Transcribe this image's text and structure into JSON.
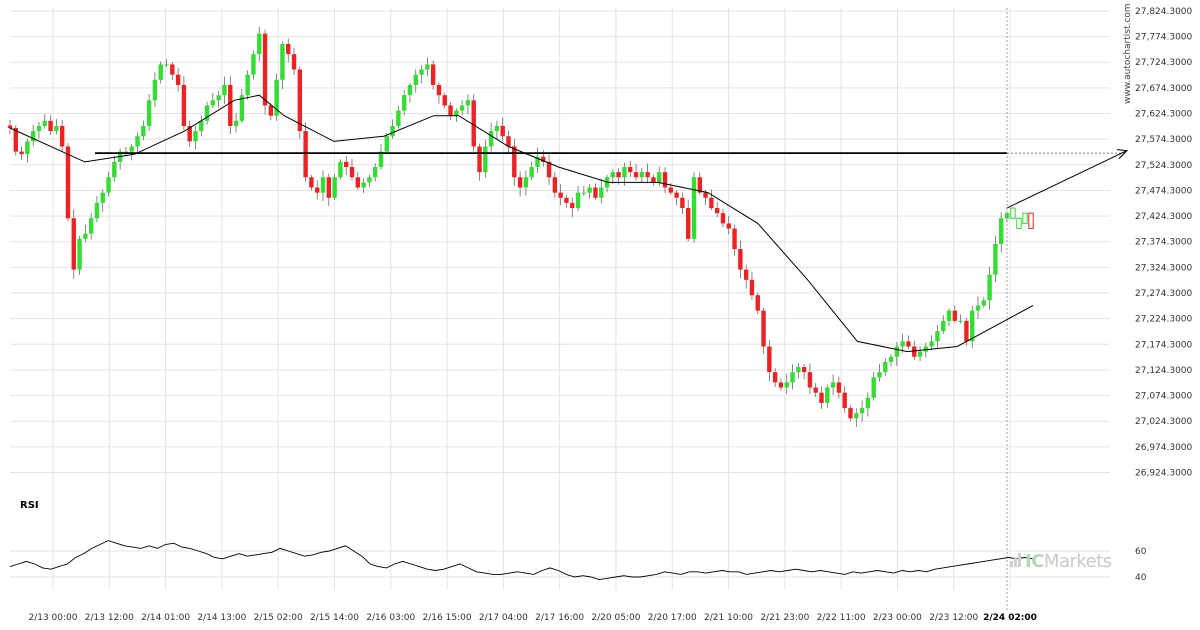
{
  "chart_data": {
    "type": "candlestick",
    "watermark": "www.autochartist.com",
    "brand": {
      "prefix": "IC",
      "suffix": "Markets"
    },
    "colors": {
      "up": "#33dd33",
      "down": "#ee2222",
      "line": "#000000",
      "grid": "#e3e3e3"
    },
    "price_axis": {
      "ylim": [
        26900,
        27830
      ],
      "ticks": [
        27824.3,
        27774.3,
        27724.3,
        27674.3,
        27624.3,
        27574.3,
        27524.3,
        27474.3,
        27424.3,
        27374.3,
        27324.3,
        27274.3,
        27224.3,
        27174.3,
        27124.3,
        27074.3,
        27024.3,
        26974.3,
        26924.3
      ],
      "tick_labels": [
        "27,824.3000",
        "27,774.3000",
        "27,724.3000",
        "27,674.3000",
        "27,624.3000",
        "27,574.3000",
        "27,524.3000",
        "27,474.3000",
        "27,424.3000",
        "27,374.3000",
        "27,324.3000",
        "27,274.3000",
        "27,224.3000",
        "27,174.3000",
        "27,124.3000",
        "27,074.3000",
        "27,024.3000",
        "26,974.3000",
        "26,924.3000"
      ]
    },
    "x_labels": [
      "2/13 00:00",
      "2/13 12:00",
      "2/14 01:00",
      "2/14 13:00",
      "2/15 02:00",
      "2/15 14:00",
      "2/16 03:00",
      "2/16 15:00",
      "2/17 04:00",
      "2/17 16:00",
      "2/20 05:00",
      "2/20 17:00",
      "2/21 10:00",
      "2/21 23:00",
      "2/22 11:00",
      "2/23 00:00",
      "2/23 12:00",
      "2/24 02:00"
    ],
    "x_label_bold_index": 17,
    "candle_count": 200,
    "closes": [
      27596,
      27550,
      27545,
      27570,
      27590,
      27600,
      27610,
      27590,
      27600,
      27560,
      27420,
      27320,
      27380,
      27390,
      27420,
      27450,
      27470,
      27500,
      27530,
      27550,
      27550,
      27560,
      27580,
      27600,
      27650,
      27690,
      27720,
      27720,
      27700,
      27680,
      27600,
      27570,
      27590,
      27610,
      27640,
      27650,
      27660,
      27680,
      27600,
      27610,
      27660,
      27700,
      27740,
      27780,
      27640,
      27620,
      27690,
      27760,
      27740,
      27710,
      27590,
      27500,
      27480,
      27470,
      27500,
      27460,
      27500,
      27530,
      27520,
      27500,
      27480,
      27490,
      27500,
      27520,
      27550,
      27580,
      27600,
      27630,
      27660,
      27680,
      27700,
      27710,
      27720,
      27680,
      27660,
      27640,
      27620,
      27630,
      27640,
      27650,
      27560,
      27510,
      27560,
      27590,
      27600,
      27580,
      27560,
      27500,
      27480,
      27500,
      27520,
      27540,
      27530,
      27500,
      27470,
      27460,
      27450,
      27440,
      27470,
      27470,
      27480,
      27460,
      27480,
      27500,
      27510,
      27500,
      27520,
      27510,
      27500,
      27510,
      27500,
      27490,
      27510,
      27480,
      27470,
      27460,
      27440,
      27380,
      27500,
      27470,
      27460,
      27440,
      27430,
      27410,
      27400,
      27360,
      27320,
      27300,
      27270,
      27240,
      27170,
      27120,
      27100,
      27090,
      27100,
      27120,
      27130,
      27120,
      27090,
      27080,
      27060,
      27090,
      27100,
      27080,
      27050,
      27030,
      27040,
      27050,
      27070,
      27110,
      27120,
      27140,
      27150,
      27170,
      27180,
      27170,
      27150,
      27160,
      27170,
      27180,
      27200,
      27220,
      27240,
      27220,
      27220,
      27180,
      27240,
      27250,
      27260,
      27310,
      27370,
      27420,
      27430
    ],
    "sma_points": [
      [
        0,
        27596
      ],
      [
        15,
        27530
      ],
      [
        25,
        27545
      ],
      [
        35,
        27590
      ],
      [
        45,
        27650
      ],
      [
        50,
        27660
      ],
      [
        55,
        27620
      ],
      [
        65,
        27570
      ],
      [
        75,
        27580
      ],
      [
        85,
        27620
      ],
      [
        90,
        27620
      ],
      [
        100,
        27560
      ],
      [
        110,
        27520
      ],
      [
        120,
        27490
      ],
      [
        130,
        27490
      ],
      [
        140,
        27470
      ],
      [
        150,
        27410
      ],
      [
        160,
        27300
      ],
      [
        170,
        27180
      ],
      [
        180,
        27160
      ],
      [
        190,
        27170
      ],
      [
        200,
        27250
      ]
    ],
    "support_level": 27547,
    "forecast_target": 27552,
    "rsi": {
      "title": "RSI",
      "ylim": [
        30,
        80
      ],
      "ticks": [
        60,
        40
      ],
      "tick_labels": [
        "60",
        "40"
      ],
      "values": [
        48,
        50,
        52,
        50,
        47,
        46,
        48,
        50,
        55,
        58,
        62,
        65,
        68,
        66,
        64,
        63,
        62,
        64,
        62,
        65,
        66,
        63,
        62,
        60,
        58,
        55,
        54,
        56,
        58,
        56,
        57,
        58,
        59,
        62,
        60,
        58,
        56,
        57,
        59,
        60,
        62,
        64,
        60,
        56,
        50,
        48,
        47,
        50,
        52,
        50,
        48,
        46,
        45,
        46,
        48,
        50,
        47,
        44,
        43,
        42,
        42,
        43,
        44,
        43,
        42,
        45,
        47,
        45,
        42,
        40,
        41,
        40,
        38,
        39,
        40,
        41,
        40,
        40,
        41,
        42,
        44,
        43,
        42,
        44,
        44,
        43,
        44,
        45,
        44,
        44,
        42,
        43,
        44,
        45,
        44,
        45,
        46,
        45,
        44,
        45,
        44,
        43,
        42,
        44,
        43,
        44,
        45,
        44,
        43,
        45,
        44,
        45,
        44,
        46,
        47,
        48,
        49,
        50,
        51,
        52,
        53,
        54,
        55,
        54,
        55,
        54
      ]
    }
  }
}
